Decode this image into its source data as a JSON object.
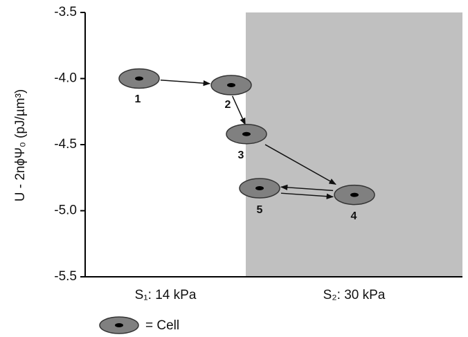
{
  "chart_data": {
    "type": "scatter",
    "categories": [
      "S₁: 14 kPa",
      "S₂: 30 kPa"
    ],
    "shaded_color": "#c0c0c0",
    "ylabel": "U - 2nϕΨ₀ (pJ/µm³)",
    "ylim": [
      -3.5,
      -5.5
    ],
    "yticks": [
      -3.5,
      {
        "value": -4,
        "label": "-4.0"
      },
      -4.5,
      {
        "value": -5,
        "label": "-5.0"
      },
      -5.5
    ],
    "point_labels": [
      "1",
      "2",
      "3",
      "4",
      "5"
    ],
    "values": [
      -4.0,
      -4.05,
      -4.42,
      -4.88,
      -4.83
    ],
    "color": "#808080",
    "legend_label": "= Cell"
  }
}
